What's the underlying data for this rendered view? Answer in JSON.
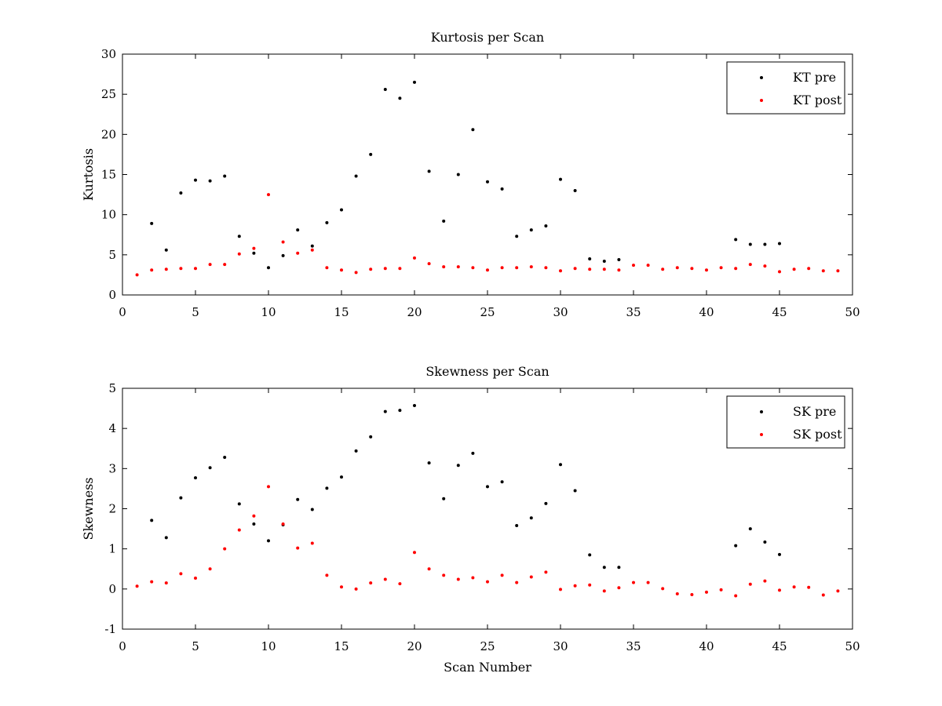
{
  "chart_data": [
    {
      "type": "scatter",
      "title": "Kurtosis per Scan",
      "xlabel": "",
      "ylabel": "Kurtosis",
      "xlim": [
        0,
        50
      ],
      "ylim": [
        0,
        30
      ],
      "xticks": [
        0,
        5,
        10,
        15,
        20,
        25,
        30,
        35,
        40,
        45,
        50
      ],
      "yticks": [
        0,
        5,
        10,
        15,
        20,
        25,
        30
      ],
      "grid": false,
      "legend_position": "top-right",
      "series": [
        {
          "name": "KT pre",
          "color": "#000000",
          "points": [
            [
              2,
              8.9
            ],
            [
              3,
              5.6
            ],
            [
              4,
              12.7
            ],
            [
              5,
              14.3
            ],
            [
              6,
              14.2
            ],
            [
              7,
              14.8
            ],
            [
              8,
              7.3
            ],
            [
              9,
              5.2
            ],
            [
              10,
              3.4
            ],
            [
              11,
              4.9
            ],
            [
              12,
              8.1
            ],
            [
              13,
              6.1
            ],
            [
              14,
              9.0
            ],
            [
              15,
              10.6
            ],
            [
              16,
              14.8
            ],
            [
              17,
              17.5
            ],
            [
              18,
              25.6
            ],
            [
              19,
              24.5
            ],
            [
              20,
              26.5
            ],
            [
              21,
              15.4
            ],
            [
              22,
              9.2
            ],
            [
              23,
              15.0
            ],
            [
              24,
              20.6
            ],
            [
              25,
              14.1
            ],
            [
              26,
              13.2
            ],
            [
              27,
              7.3
            ],
            [
              28,
              8.1
            ],
            [
              29,
              8.6
            ],
            [
              30,
              14.4
            ],
            [
              31,
              13.0
            ],
            [
              32,
              4.5
            ],
            [
              33,
              4.2
            ],
            [
              34,
              4.4
            ],
            [
              42,
              6.9
            ],
            [
              43,
              6.3
            ],
            [
              44,
              6.3
            ],
            [
              45,
              6.4
            ]
          ]
        },
        {
          "name": "KT post",
          "color": "#ff0000",
          "points": [
            [
              1,
              2.5
            ],
            [
              2,
              3.1
            ],
            [
              3,
              3.2
            ],
            [
              4,
              3.3
            ],
            [
              5,
              3.3
            ],
            [
              6,
              3.8
            ],
            [
              7,
              3.8
            ],
            [
              8,
              5.1
            ],
            [
              9,
              5.8
            ],
            [
              10,
              12.5
            ],
            [
              11,
              6.6
            ],
            [
              12,
              5.2
            ],
            [
              13,
              5.6
            ],
            [
              14,
              3.4
            ],
            [
              15,
              3.1
            ],
            [
              16,
              2.8
            ],
            [
              17,
              3.2
            ],
            [
              18,
              3.3
            ],
            [
              19,
              3.3
            ],
            [
              20,
              4.6
            ],
            [
              21,
              3.9
            ],
            [
              22,
              3.5
            ],
            [
              23,
              3.5
            ],
            [
              24,
              3.4
            ],
            [
              25,
              3.1
            ],
            [
              26,
              3.4
            ],
            [
              27,
              3.4
            ],
            [
              28,
              3.5
            ],
            [
              29,
              3.4
            ],
            [
              30,
              3.0
            ],
            [
              31,
              3.3
            ],
            [
              32,
              3.2
            ],
            [
              33,
              3.2
            ],
            [
              34,
              3.1
            ],
            [
              35,
              3.7
            ],
            [
              36,
              3.7
            ],
            [
              37,
              3.2
            ],
            [
              38,
              3.4
            ],
            [
              39,
              3.3
            ],
            [
              40,
              3.1
            ],
            [
              41,
              3.4
            ],
            [
              42,
              3.3
            ],
            [
              43,
              3.8
            ],
            [
              44,
              3.6
            ],
            [
              45,
              2.9
            ],
            [
              46,
              3.2
            ],
            [
              47,
              3.3
            ],
            [
              48,
              3.0
            ],
            [
              49,
              3.0
            ]
          ]
        }
      ]
    },
    {
      "type": "scatter",
      "title": "Skewness per Scan",
      "xlabel": "Scan Number",
      "ylabel": "Skewness",
      "xlim": [
        0,
        50
      ],
      "ylim": [
        -1,
        5
      ],
      "xticks": [
        0,
        5,
        10,
        15,
        20,
        25,
        30,
        35,
        40,
        45,
        50
      ],
      "yticks": [
        -1,
        0,
        1,
        2,
        3,
        4,
        5
      ],
      "grid": false,
      "legend_position": "top-right",
      "series": [
        {
          "name": "SK pre",
          "color": "#000000",
          "points": [
            [
              2,
              1.71
            ],
            [
              3,
              1.28
            ],
            [
              4,
              2.27
            ],
            [
              5,
              2.77
            ],
            [
              6,
              3.02
            ],
            [
              7,
              3.28
            ],
            [
              8,
              2.12
            ],
            [
              9,
              1.62
            ],
            [
              10,
              1.2
            ],
            [
              11,
              1.6
            ],
            [
              12,
              2.23
            ],
            [
              13,
              1.98
            ],
            [
              14,
              2.51
            ],
            [
              15,
              2.79
            ],
            [
              16,
              3.44
            ],
            [
              17,
              3.79
            ],
            [
              18,
              4.42
            ],
            [
              19,
              4.45
            ],
            [
              20,
              4.57
            ],
            [
              21,
              3.14
            ],
            [
              22,
              2.25
            ],
            [
              23,
              3.08
            ],
            [
              24,
              3.38
            ],
            [
              25,
              2.55
            ],
            [
              26,
              2.67
            ],
            [
              27,
              1.58
            ],
            [
              28,
              1.77
            ],
            [
              29,
              2.13
            ],
            [
              30,
              3.1
            ],
            [
              31,
              2.45
            ],
            [
              32,
              0.85
            ],
            [
              33,
              0.54
            ],
            [
              34,
              0.54
            ],
            [
              42,
              1.08
            ],
            [
              43,
              1.5
            ],
            [
              44,
              1.17
            ],
            [
              45,
              0.86
            ]
          ]
        },
        {
          "name": "SK post",
          "color": "#ff0000",
          "points": [
            [
              1,
              0.07
            ],
            [
              2,
              0.18
            ],
            [
              3,
              0.15
            ],
            [
              4,
              0.38
            ],
            [
              5,
              0.27
            ],
            [
              6,
              0.5
            ],
            [
              7,
              1.0
            ],
            [
              8,
              1.47
            ],
            [
              9,
              1.82
            ],
            [
              10,
              2.55
            ],
            [
              11,
              1.62
            ],
            [
              12,
              1.02
            ],
            [
              13,
              1.14
            ],
            [
              14,
              0.34
            ],
            [
              15,
              0.05
            ],
            [
              16,
              0.0
            ],
            [
              17,
              0.15
            ],
            [
              18,
              0.24
            ],
            [
              19,
              0.13
            ],
            [
              20,
              0.91
            ],
            [
              21,
              0.5
            ],
            [
              22,
              0.34
            ],
            [
              23,
              0.24
            ],
            [
              24,
              0.28
            ],
            [
              25,
              0.18
            ],
            [
              26,
              0.34
            ],
            [
              27,
              0.16
            ],
            [
              28,
              0.3
            ],
            [
              29,
              0.42
            ],
            [
              30,
              -0.01
            ],
            [
              31,
              0.08
            ],
            [
              32,
              0.1
            ],
            [
              33,
              -0.05
            ],
            [
              34,
              0.03
            ],
            [
              35,
              0.16
            ],
            [
              36,
              0.16
            ],
            [
              37,
              0.01
            ],
            [
              38,
              -0.12
            ],
            [
              39,
              -0.14
            ],
            [
              40,
              -0.08
            ],
            [
              41,
              -0.02
            ],
            [
              42,
              -0.17
            ],
            [
              43,
              0.12
            ],
            [
              44,
              0.2
            ],
            [
              45,
              -0.03
            ],
            [
              46,
              0.05
            ],
            [
              47,
              0.04
            ],
            [
              48,
              -0.15
            ],
            [
              49,
              -0.05
            ]
          ]
        }
      ]
    }
  ]
}
